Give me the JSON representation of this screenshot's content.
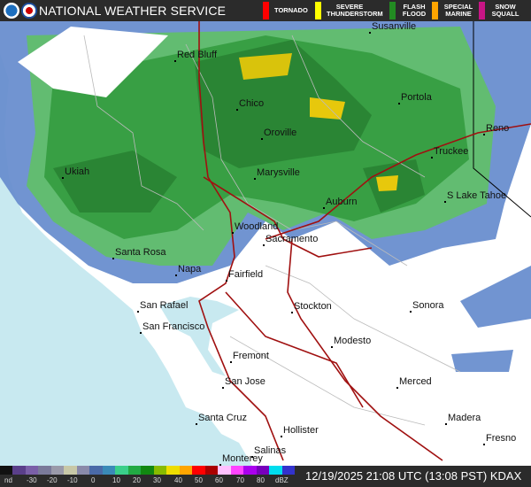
{
  "header": {
    "title": "NATIONAL WEATHER SERVICE",
    "warnings": [
      {
        "label": "TORNADO",
        "color": "#ff0000"
      },
      {
        "label": "SEVERE THUNDERSTORM",
        "color": "#ffff00"
      },
      {
        "label": "FLASH FLOOD",
        "color": "#228b22"
      },
      {
        "label": "SPECIAL MARINE",
        "color": "#ffa500"
      },
      {
        "label": "SNOW SQUALL",
        "color": "#c71585"
      }
    ]
  },
  "cities": [
    {
      "name": "Susanville"
    },
    {
      "name": "Red Bluff"
    },
    {
      "name": "Chico"
    },
    {
      "name": "Portola"
    },
    {
      "name": "Oroville"
    },
    {
      "name": "Reno"
    },
    {
      "name": "Truckee"
    },
    {
      "name": "Ukiah"
    },
    {
      "name": "Marysville"
    },
    {
      "name": "Auburn"
    },
    {
      "name": "S Lake Tahoe"
    },
    {
      "name": "Woodland"
    },
    {
      "name": "Sacramento"
    },
    {
      "name": "Santa Rosa"
    },
    {
      "name": "Napa"
    },
    {
      "name": "Fairfield"
    },
    {
      "name": "Stockton"
    },
    {
      "name": "Sonora"
    },
    {
      "name": "San Rafael"
    },
    {
      "name": "San Francisco"
    },
    {
      "name": "Modesto"
    },
    {
      "name": "Fremont"
    },
    {
      "name": "San Jose"
    },
    {
      "name": "Merced"
    },
    {
      "name": "Santa Cruz"
    },
    {
      "name": "Madera"
    },
    {
      "name": "Hollister"
    },
    {
      "name": "Fresno"
    },
    {
      "name": "Salinas"
    },
    {
      "name": "Monterey"
    }
  ],
  "legend": {
    "ticks": [
      "nd",
      "-30",
      "-20",
      "-10",
      "0",
      "10",
      "20",
      "30",
      "40",
      "50",
      "60",
      "70",
      "80",
      "dBZ"
    ],
    "colors": [
      "#111111",
      "#5a3f8a",
      "#7a5fa8",
      "#7a7a9a",
      "#9a9aaa",
      "#c8c8a8",
      "#8a8aaa",
      "#4a6aa8",
      "#3a8ab8",
      "#3acf8a",
      "#22aa44",
      "#118811",
      "#88bb00",
      "#eedd00",
      "#ffa500",
      "#ff0000",
      "#aa0000",
      "#ffc0ff",
      "#ff44ff",
      "#aa00ee",
      "#7700bb",
      "#00ddee",
      "#3333cc"
    ]
  },
  "timestamp": "12/19/2025 21:08 UTC (13:08 PST) KDAX",
  "colors": {
    "ocean": "#c8e9f0",
    "land": "#ffffff",
    "highway": "#a01010"
  }
}
